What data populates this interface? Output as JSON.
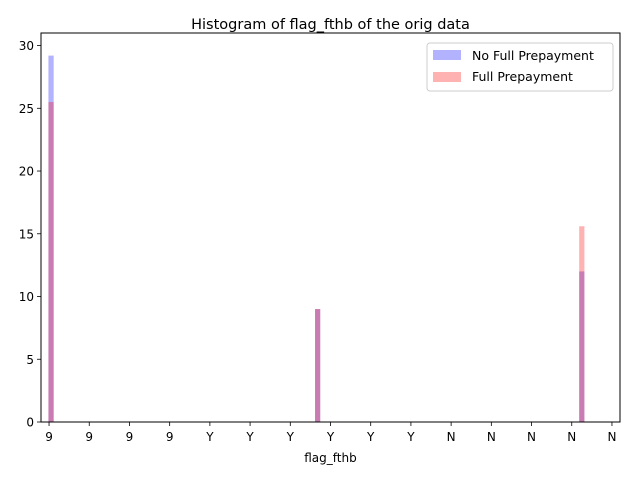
{
  "chart_data": {
    "type": "bar",
    "title": "Histogram of flag_fthb of the orig data",
    "xlabel": "flag_fthb",
    "ylabel": "",
    "ylim": [
      0,
      31
    ],
    "yticks": [
      0,
      5,
      10,
      15,
      20,
      25,
      30
    ],
    "xlim": [
      -0.2,
      14.2
    ],
    "x_tick_labels": [
      "9",
      "9",
      "9",
      "9",
      "Y",
      "Y",
      "Y",
      "Y",
      "Y",
      "Y",
      "N",
      "N",
      "N",
      "N",
      "N"
    ],
    "bar_width": 0.13,
    "series": [
      {
        "name": "No Full Prepayment",
        "color": "#0000ff",
        "opacity": 0.3,
        "bars": [
          {
            "x": 0.05,
            "value": 29.2
          },
          {
            "x": 6.68,
            "value": 9.0
          },
          {
            "x": 13.25,
            "value": 12.0
          }
        ]
      },
      {
        "name": "Full Prepayment",
        "color": "#ff0000",
        "opacity": 0.3,
        "bars": [
          {
            "x": 0.05,
            "value": 25.5
          },
          {
            "x": 6.68,
            "value": 9.0
          },
          {
            "x": 13.25,
            "value": 15.6
          }
        ]
      }
    ],
    "grid": false,
    "legend_position": "upper right"
  }
}
